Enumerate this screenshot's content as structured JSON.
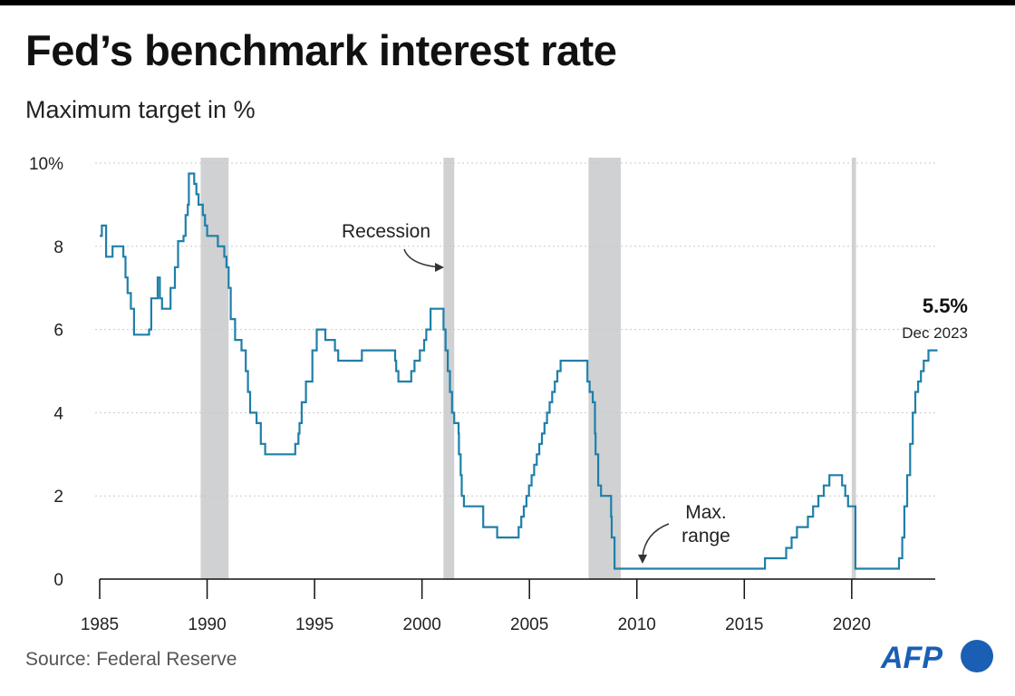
{
  "title": "Fed’s benchmark interest rate",
  "subtitle": "Maximum target in %",
  "source": "Source: Federal Reserve",
  "logo_text": "AFP",
  "colors": {
    "line": "#1f7fa8",
    "recession": "#cfd1d3",
    "logo_blue": "#1a5fb4"
  },
  "chart_data": {
    "type": "line",
    "step": true,
    "title": "Fed’s benchmark interest rate",
    "subtitle": "Maximum target in %",
    "xlim": [
      1985,
      2024
    ],
    "ylim": [
      0,
      10
    ],
    "x_ticks": [
      "1985",
      "1990",
      "1995",
      "2000",
      "2005",
      "2010",
      "2015",
      "2020"
    ],
    "y_ticks": [
      "0",
      "2",
      "4",
      "6",
      "8",
      "10%"
    ],
    "grid": "horizontal dotted",
    "recessions": [
      [
        1989.7,
        1991.0
      ],
      [
        2001.0,
        2001.5
      ],
      [
        2007.75,
        2009.25
      ],
      [
        2020.0,
        2020.2
      ]
    ],
    "annotations": [
      {
        "text": "Recession"
      },
      {
        "text": "Max.\nrange",
        "lines": [
          "Max.",
          "range"
        ]
      },
      {
        "value_label": "5.5%",
        "date_label": "Dec 2023"
      }
    ],
    "series": [
      {
        "x": [
          1985.0,
          1985.1,
          1985.15,
          1985.3,
          1985.5,
          1985.6,
          1986.1,
          1986.2,
          1986.3,
          1986.45,
          1986.6,
          1987.3,
          1987.4,
          1987.7,
          1987.8,
          1987.9,
          1988.2,
          1988.3,
          1988.5,
          1988.65,
          1988.9,
          1989.0,
          1989.1,
          1989.15,
          1989.4,
          1989.5,
          1989.6,
          1989.8,
          1989.9,
          1990.0,
          1990.5,
          1990.8,
          1990.9,
          1991.0,
          1991.1,
          1991.3,
          1991.6,
          1991.8,
          1991.9,
          1992.0,
          1992.3,
          1992.5,
          1992.7,
          1994.1,
          1994.25,
          1994.3,
          1994.4,
          1994.6,
          1994.9,
          1995.1,
          1995.5,
          1995.95,
          1996.1,
          1997.2,
          1998.75,
          1998.8,
          1998.9,
          1999.5,
          1999.65,
          1999.9,
          2000.1,
          2000.2,
          2000.4,
          2001.0,
          2001.1,
          2001.2,
          2001.3,
          2001.4,
          2001.5,
          2001.7,
          2001.72,
          2001.8,
          2001.85,
          2001.95,
          2002.85,
          2003.5,
          2004.5,
          2004.62,
          2004.74,
          2004.86,
          2004.98,
          2005.1,
          2005.22,
          2005.34,
          2005.46,
          2005.58,
          2005.7,
          2005.82,
          2005.94,
          2006.06,
          2006.18,
          2006.3,
          2006.45,
          2007.7,
          2007.8,
          2007.95,
          2008.05,
          2008.08,
          2008.2,
          2008.33,
          2008.8,
          2008.83,
          2008.96,
          2015.96,
          2016.95,
          2017.2,
          2017.45,
          2017.96,
          2018.2,
          2018.45,
          2018.7,
          2018.96,
          2019.55,
          2019.7,
          2019.83,
          2020.17,
          2022.2,
          2022.35,
          2022.45,
          2022.58,
          2022.72,
          2022.84,
          2022.96,
          2023.09,
          2023.22,
          2023.35,
          2023.57,
          2023.99
        ],
        "y": [
          8.25,
          8.5,
          8.5,
          7.75,
          7.75,
          8.0,
          7.75,
          7.25,
          6.875,
          6.5,
          5.875,
          6.0,
          6.75,
          7.25,
          6.75,
          6.5,
          6.5,
          7.0,
          7.5,
          8.125,
          8.25,
          8.75,
          9.0,
          9.75,
          9.5,
          9.25,
          9.0,
          8.75,
          8.5,
          8.25,
          8.0,
          7.75,
          7.5,
          7.0,
          6.25,
          5.75,
          5.5,
          5.0,
          4.5,
          4.0,
          3.75,
          3.25,
          3.0,
          3.25,
          3.5,
          3.75,
          4.25,
          4.75,
          5.5,
          6.0,
          5.75,
          5.5,
          5.25,
          5.5,
          5.25,
          5.0,
          4.75,
          5.0,
          5.25,
          5.5,
          5.75,
          6.0,
          6.5,
          6.0,
          5.5,
          5.0,
          4.5,
          4.0,
          3.75,
          3.5,
          3.0,
          2.5,
          2.0,
          1.75,
          1.25,
          1.0,
          1.25,
          1.5,
          1.75,
          2.0,
          2.25,
          2.5,
          2.75,
          3.0,
          3.25,
          3.5,
          3.75,
          4.0,
          4.25,
          4.5,
          4.75,
          5.0,
          5.25,
          4.75,
          4.5,
          4.25,
          3.5,
          3.0,
          2.25,
          2.0,
          1.5,
          1.0,
          0.25,
          0.5,
          0.75,
          1.0,
          1.25,
          1.5,
          1.75,
          2.0,
          2.25,
          2.5,
          2.25,
          2.0,
          1.75,
          0.25,
          0.5,
          1.0,
          1.75,
          2.5,
          3.25,
          4.0,
          4.5,
          4.75,
          5.0,
          5.25,
          5.5,
          5.5
        ]
      }
    ]
  }
}
